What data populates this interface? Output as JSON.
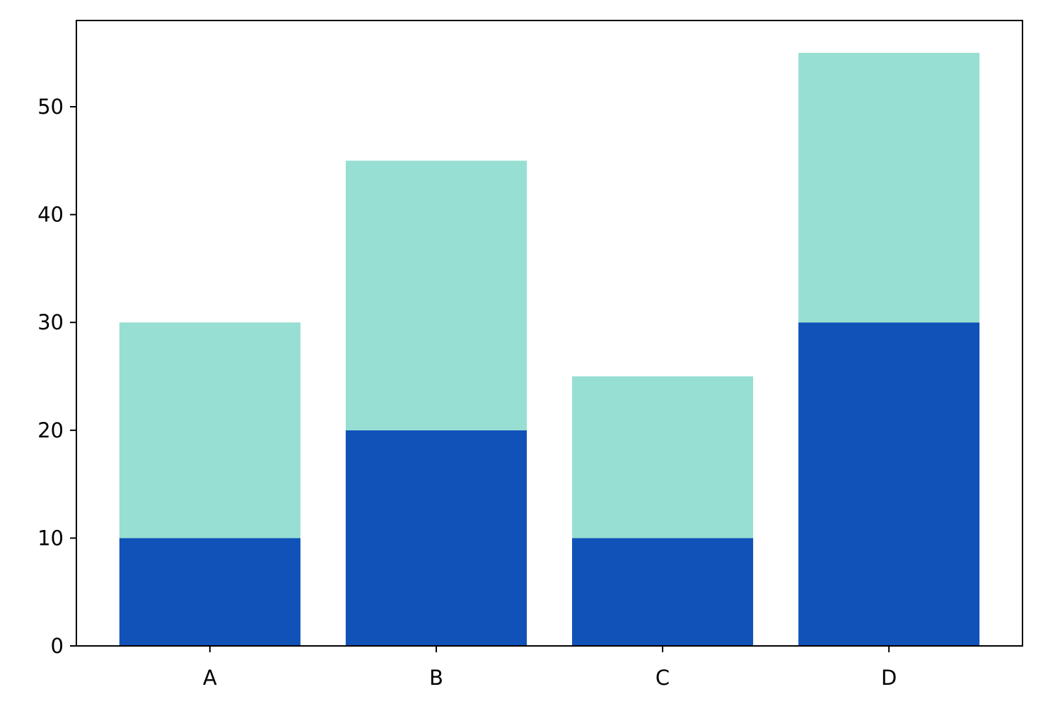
{
  "chart_data": {
    "type": "bar",
    "stacked": true,
    "title": "",
    "xlabel": "",
    "ylabel": "",
    "categories": [
      "A",
      "B",
      "C",
      "D"
    ],
    "series": [
      {
        "values": [
          10,
          20,
          10,
          30
        ],
        "color": "#1052b8"
      },
      {
        "values": [
          20,
          25,
          15,
          25
        ],
        "color": "#97dfd2"
      }
    ],
    "ylim": [
      0,
      58
    ],
    "yticks": [
      0,
      10,
      20,
      30,
      40,
      50
    ],
    "grid": false,
    "legend": "none"
  }
}
